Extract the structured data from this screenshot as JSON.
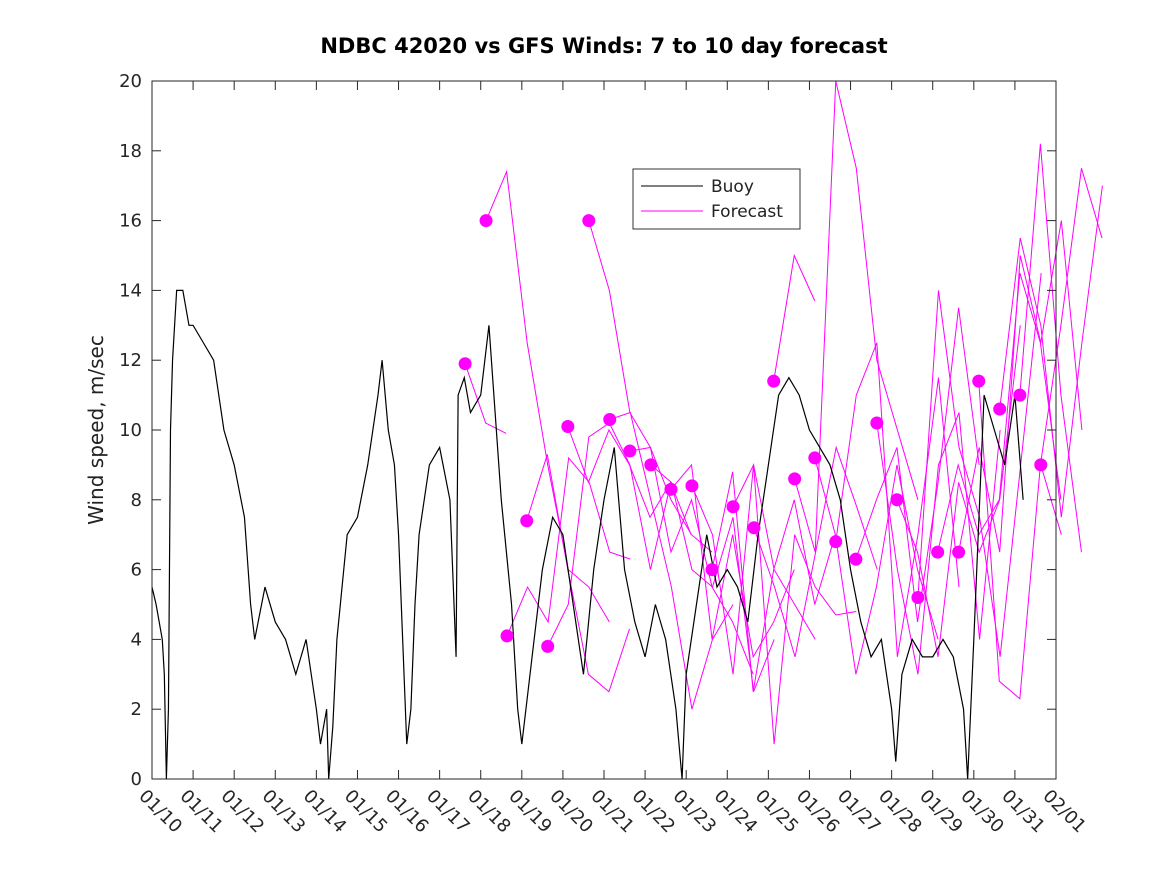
{
  "chart_data": {
    "type": "line",
    "title": "NDBC 42020 vs GFS Winds: 7 to 10 day forecast",
    "xlabel": "",
    "ylabel": "Wind speed, m/sec",
    "ylim": [
      0,
      20
    ],
    "xlim_days_since_0110": [
      0,
      22
    ],
    "yticks": [
      "0",
      "2",
      "4",
      "6",
      "8",
      "10",
      "12",
      "14",
      "16",
      "18",
      "20"
    ],
    "xticks": [
      "01/10",
      "01/11",
      "01/12",
      "01/13",
      "01/14",
      "01/15",
      "01/16",
      "01/17",
      "01/18",
      "01/19",
      "01/20",
      "01/21",
      "01/22",
      "01/23",
      "01/24",
      "01/25",
      "01/26",
      "01/27",
      "01/28",
      "01/29",
      "01/30",
      "01/31",
      "02/01"
    ],
    "legend": {
      "placement": "top-center",
      "entries": [
        {
          "label": "Buoy",
          "color": "#000000"
        },
        {
          "label": "Forecast",
          "color": "#ff00ff"
        }
      ]
    },
    "buoy": {
      "name": "Buoy",
      "color": "#000000",
      "x": [
        0,
        0.1,
        0.25,
        0.3,
        0.35,
        0.4,
        0.45,
        0.5,
        0.6,
        0.75,
        0.9,
        1,
        1.25,
        1.5,
        1.75,
        2,
        2.25,
        2.4,
        2.5,
        2.75,
        3,
        3.25,
        3.5,
        3.75,
        4,
        4.1,
        4.25,
        4.3,
        4.4,
        4.5,
        4.75,
        5,
        5.25,
        5.5,
        5.6,
        5.75,
        5.9,
        6,
        6.1,
        6.2,
        6.3,
        6.4,
        6.5,
        6.75,
        7,
        7.25,
        7.35,
        7.4,
        7.45,
        7.6,
        7.75,
        8,
        8.2,
        8.35,
        8.5,
        8.75,
        8.9,
        9,
        9.25,
        9.5,
        9.75,
        10,
        10.25,
        10.5,
        10.75,
        11,
        11.25,
        11.5,
        11.75,
        12,
        12.25,
        12.5,
        12.75,
        12.9,
        13,
        13.25,
        13.5,
        13.75,
        14,
        14.25,
        14.5,
        14.75,
        15,
        15.25,
        15.5,
        15.75,
        16,
        16.25,
        16.5,
        16.75,
        17,
        17.25,
        17.5,
        17.75,
        18,
        18.1,
        18.25,
        18.5,
        18.75,
        19,
        19.25,
        19.5,
        19.75,
        19.85,
        20,
        20.25,
        20.5,
        20.75,
        21,
        21.2
      ],
      "y": [
        5.5,
        5,
        4,
        3,
        0,
        2,
        10,
        12,
        14,
        14,
        13,
        13,
        12.5,
        12,
        10,
        9,
        7.5,
        5,
        4,
        5.5,
        4.5,
        4,
        3,
        4,
        2,
        1,
        2,
        0,
        1.5,
        4,
        7,
        7.5,
        9,
        11,
        12,
        10,
        9,
        7,
        4,
        1,
        2,
        5,
        7,
        9,
        9.5,
        8,
        5,
        3.5,
        11,
        11.5,
        10.5,
        11,
        13,
        10.5,
        8,
        5,
        2,
        1,
        3.5,
        6,
        7.5,
        7,
        5,
        3,
        6,
        8,
        9.5,
        6,
        4.5,
        3.5,
        5,
        4,
        2,
        0,
        3,
        5,
        7,
        5.5,
        6,
        5.5,
        4.5,
        7,
        9,
        11,
        11.5,
        11,
        10,
        9.5,
        9,
        8,
        6,
        4.5,
        3.5,
        4,
        2,
        0.5,
        3,
        4,
        3.5,
        3.5,
        4,
        3.5,
        2,
        0,
        4,
        11,
        10,
        9,
        11,
        8
      ]
    },
    "forecast": {
      "name": "Forecast",
      "color": "#ff00ff",
      "step_days": 0.5,
      "series": [
        {
          "start": 7.62,
          "values": [
            11.9,
            10.2,
            9.9
          ]
        },
        {
          "start": 8.13,
          "values": [
            16,
            17.4,
            12.5,
            9,
            6,
            5.5,
            4.5
          ]
        },
        {
          "start": 8.64,
          "values": [
            4.1,
            5.5,
            4.5,
            9.2,
            8.5,
            6.5,
            6.3
          ]
        },
        {
          "start": 9.12,
          "values": [
            7.4,
            9.3,
            6,
            3,
            2.5,
            4.3
          ]
        },
        {
          "start": 9.63,
          "values": [
            3.8,
            5,
            9.8,
            10.2,
            9,
            6,
            8.5
          ]
        },
        {
          "start": 10.12,
          "values": [
            10.1,
            8.5,
            10,
            9,
            7.5,
            8.5,
            7
          ]
        },
        {
          "start": 10.63,
          "values": [
            16,
            14,
            10.5,
            9.5,
            8,
            7,
            6.5
          ]
        },
        {
          "start": 11.14,
          "values": [
            10.3,
            10.5,
            8,
            5.5,
            2,
            4,
            5
          ]
        },
        {
          "start": 11.63,
          "values": [
            9.4,
            9.5,
            6.5,
            8,
            5.5,
            4.5,
            3
          ]
        },
        {
          "start": 12.14,
          "values": [
            9,
            8.5,
            6,
            5.5,
            7.5,
            2.5,
            4
          ]
        },
        {
          "start": 12.63,
          "values": [
            8.3,
            9,
            4,
            7,
            3.5,
            4.5,
            6
          ]
        },
        {
          "start": 13.14,
          "values": [
            8.4,
            7,
            3,
            9,
            6,
            5,
            4
          ]
        },
        {
          "start": 13.63,
          "values": [
            6,
            8.8,
            2.5,
            6,
            8,
            5,
            7
          ]
        },
        {
          "start": 14.14,
          "values": [
            7.8,
            9,
            1,
            7,
            5.5,
            4.7,
            4.8
          ]
        },
        {
          "start": 14.65,
          "values": [
            7.2,
            5.5,
            3.5,
            6.5,
            9.5,
            7.8,
            6
          ]
        },
        {
          "start": 15.13,
          "values": [
            11.4,
            15,
            13.7
          ]
        },
        {
          "start": 15.64,
          "values": [
            8.6,
            6.5,
            20,
            17.5,
            12,
            10,
            8
          ]
        },
        {
          "start": 16.13,
          "values": [
            9.2,
            7,
            3,
            5.5,
            9,
            6,
            4
          ]
        },
        {
          "start": 16.64,
          "values": [
            6.8,
            11,
            12.5,
            3.5,
            7,
            11.5,
            5.5
          ]
        },
        {
          "start": 17.13,
          "values": [
            6.3,
            8,
            9.5,
            4.5,
            8.5,
            13.5,
            9
          ]
        },
        {
          "start": 17.64,
          "values": [
            10.2,
            6,
            3,
            9,
            10.5,
            4,
            10
          ]
        },
        {
          "start": 18.13,
          "values": [
            8,
            6.5,
            3.5,
            8.5,
            6.5,
            8,
            13
          ]
        },
        {
          "start": 18.64,
          "values": [
            5.2,
            14,
            9.5,
            7.5,
            3.5,
            9,
            14.5
          ]
        },
        {
          "start": 19.12,
          "values": [
            6.5,
            9,
            7,
            8,
            14.5,
            12.5,
            8
          ]
        },
        {
          "start": 19.63,
          "values": [
            6.5,
            9.5,
            6.5,
            15,
            12.5,
            16,
            10
          ]
        },
        {
          "start": 20.12,
          "values": [
            11.4,
            2.8,
            2.3,
            9,
            13,
            17.5,
            15.5
          ]
        },
        {
          "start": 20.63,
          "values": [
            10.6,
            15.5,
            13,
            7.5,
            12.5,
            17
          ]
        },
        {
          "start": 21.12,
          "values": [
            11,
            18.2,
            11,
            6.5
          ]
        },
        {
          "start": 21.63,
          "values": [
            9,
            7
          ]
        }
      ]
    }
  }
}
